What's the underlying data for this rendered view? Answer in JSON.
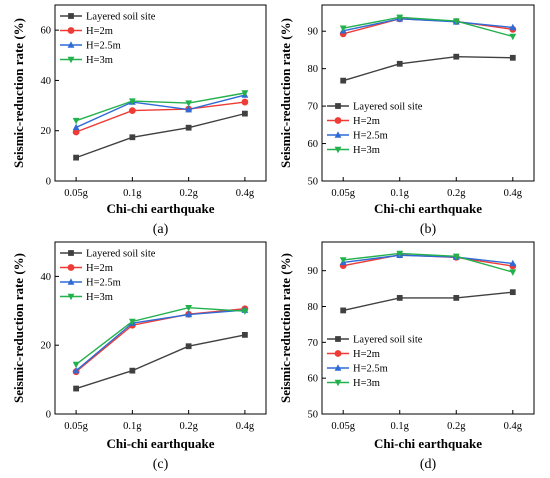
{
  "chart_data": [
    {
      "type": "line",
      "panel_label": "(a)",
      "xlabel": "Chi-chi earthquake",
      "ylabel": "Seismic-reduction rate (%)",
      "categories": [
        "0.05g",
        "0.1g",
        "0.2g",
        "0.4g"
      ],
      "ylim": [
        0,
        70
      ],
      "yticks": [
        0,
        20,
        40,
        60
      ],
      "legend_position": "top-left",
      "series": [
        {
          "name": "Layered soil site",
          "color": "#404040",
          "marker": "square",
          "values": [
            9.3,
            17.4,
            21.2,
            26.8
          ]
        },
        {
          "name": "H=2m",
          "color": "#ef3b36",
          "marker": "circle",
          "values": [
            19.5,
            28.0,
            28.6,
            31.4
          ]
        },
        {
          "name": "H=2.5m",
          "color": "#2e6bd6",
          "marker": "triangle-up",
          "values": [
            21.3,
            31.4,
            28.4,
            34.2
          ]
        },
        {
          "name": "H=3m",
          "color": "#22b14c",
          "marker": "triangle-down",
          "values": [
            24.0,
            31.8,
            31.0,
            35.0
          ]
        }
      ]
    },
    {
      "type": "line",
      "panel_label": "(b)",
      "xlabel": "Chi-chi earthquake",
      "ylabel": "Seismic-reduction rate (%)",
      "categories": [
        "0.05g",
        "0.1g",
        "0.2g",
        "0.4g"
      ],
      "ylim": [
        50,
        97
      ],
      "yticks": [
        50,
        60,
        70,
        80,
        90
      ],
      "legend_position": "bottom-left",
      "series": [
        {
          "name": "Layered soil site",
          "color": "#404040",
          "marker": "square",
          "values": [
            76.8,
            81.3,
            83.2,
            82.9
          ]
        },
        {
          "name": "H=2m",
          "color": "#ef3b36",
          "marker": "circle",
          "values": [
            89.3,
            93.3,
            92.6,
            90.5
          ]
        },
        {
          "name": "H=2.5m",
          "color": "#2e6bd6",
          "marker": "triangle-up",
          "values": [
            90.1,
            93.3,
            92.5,
            91.0
          ]
        },
        {
          "name": "H=3m",
          "color": "#22b14c",
          "marker": "triangle-down",
          "values": [
            90.8,
            93.7,
            92.7,
            88.6
          ]
        }
      ]
    },
    {
      "type": "line",
      "panel_label": "(c)",
      "xlabel": "Chi-chi earthquake",
      "ylabel": "Seismic-reduction rate (%)",
      "categories": [
        "0.05g",
        "0.1g",
        "0.2g",
        "0.4g"
      ],
      "ylim": [
        0,
        50
      ],
      "yticks": [
        0,
        20,
        40
      ],
      "legend_position": "top-left",
      "series": [
        {
          "name": "Layered soil site",
          "color": "#404040",
          "marker": "square",
          "values": [
            7.4,
            12.6,
            19.7,
            23.0
          ]
        },
        {
          "name": "H=2m",
          "color": "#ef3b36",
          "marker": "circle",
          "values": [
            12.3,
            25.8,
            29.0,
            30.6
          ]
        },
        {
          "name": "H=2.5m",
          "color": "#2e6bd6",
          "marker": "triangle-up",
          "values": [
            12.6,
            26.4,
            28.9,
            30.2
          ]
        },
        {
          "name": "H=3m",
          "color": "#22b14c",
          "marker": "triangle-down",
          "values": [
            14.4,
            26.9,
            30.9,
            29.9
          ]
        }
      ]
    },
    {
      "type": "line",
      "panel_label": "(d)",
      "xlabel": "Chi-chi earthquake",
      "ylabel": "Seismic-reduction rate (%)",
      "categories": [
        "0.05g",
        "0.1g",
        "0.2g",
        "0.4g"
      ],
      "ylim": [
        50,
        98
      ],
      "yticks": [
        50,
        60,
        70,
        80,
        90
      ],
      "legend_position": "bottom-left",
      "series": [
        {
          "name": "Layered soil site",
          "color": "#404040",
          "marker": "square",
          "values": [
            78.9,
            82.4,
            82.4,
            84.0
          ]
        },
        {
          "name": "H=2m",
          "color": "#ef3b36",
          "marker": "circle",
          "values": [
            91.4,
            94.4,
            93.7,
            91.3
          ]
        },
        {
          "name": "H=2.5m",
          "color": "#2e6bd6",
          "marker": "triangle-up",
          "values": [
            92.3,
            94.3,
            93.8,
            92.0
          ]
        },
        {
          "name": "H=3m",
          "color": "#22b14c",
          "marker": "triangle-down",
          "values": [
            93.0,
            94.8,
            94.0,
            89.6
          ]
        }
      ]
    }
  ]
}
